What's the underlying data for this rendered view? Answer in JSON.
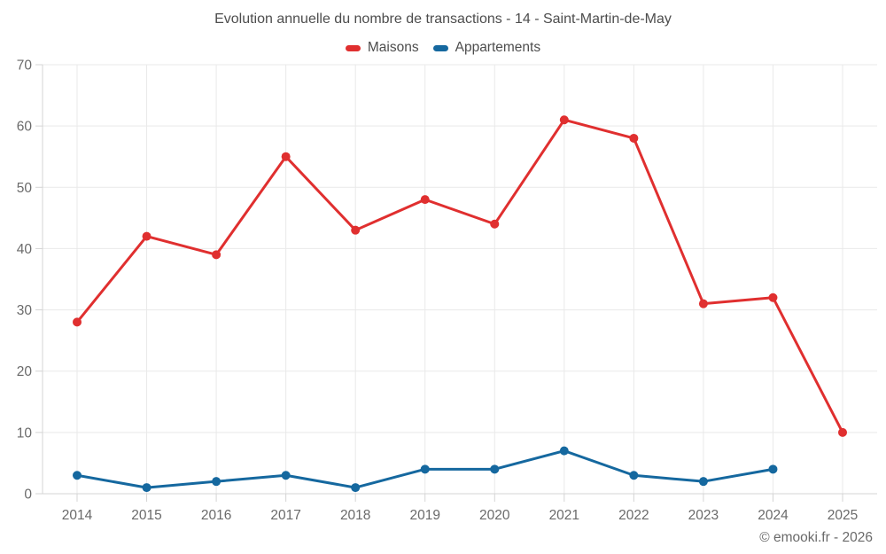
{
  "header": {
    "title": "Evolution annuelle du nombre de transactions - 14 - Saint-Martin-de-May"
  },
  "legend": {
    "items": [
      {
        "label": "Maisons",
        "color": "#e02f2f"
      },
      {
        "label": "Appartements",
        "color": "#15689f"
      }
    ]
  },
  "footer": {
    "credit": "© emooki.fr - 2026"
  },
  "colors": {
    "background": "#ffffff",
    "title_text": "#4d4d4d",
    "axis_text": "#6a6a6a",
    "gridline": "#e9e9e9",
    "axis_line": "#d4d4d4",
    "maisons": "#e02f2f",
    "appartements": "#15689f"
  },
  "chart_data": {
    "type": "line",
    "title": "Evolution annuelle du nombre de transactions - 14 - Saint-Martin-de-May",
    "x": [
      2014,
      2015,
      2016,
      2017,
      2018,
      2019,
      2020,
      2021,
      2022,
      2023,
      2024,
      2025
    ],
    "series": [
      {
        "name": "Maisons",
        "color": "#e02f2f",
        "values": [
          28,
          42,
          39,
          55,
          43,
          48,
          44,
          61,
          58,
          31,
          32,
          10
        ]
      },
      {
        "name": "Appartements",
        "color": "#15689f",
        "values": [
          3,
          1,
          2,
          3,
          1,
          4,
          4,
          7,
          3,
          2,
          4,
          null
        ]
      }
    ],
    "xlabel": "",
    "ylabel": "",
    "ylim": [
      0,
      70
    ],
    "ytick_step": 10,
    "grid": true,
    "legend_position": "top"
  }
}
